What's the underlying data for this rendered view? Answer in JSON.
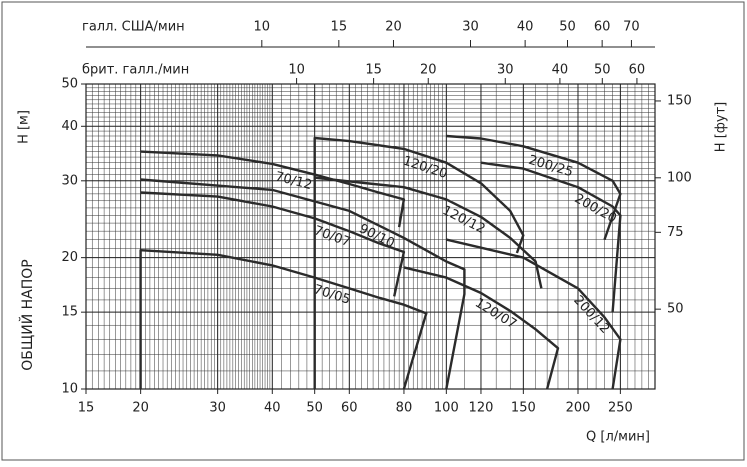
{
  "chart_data": {
    "type": "line",
    "x_label": "Q [л/мин]",
    "y_label": "H [м]",
    "y2_label": "H [фут]",
    "y_title": "ОБЩИЙ НАПОР",
    "x2_label": "галл. США/мин",
    "x3_label": "брит. галл./мин",
    "log_scale": true,
    "grid": true,
    "color": "#2b2b2b",
    "xlim": [
      15,
      300
    ],
    "xticks": [
      15,
      20,
      30,
      40,
      50,
      60,
      80,
      100,
      120,
      150,
      200,
      250
    ],
    "ylim": [
      10,
      50
    ],
    "yticks": [
      10,
      15,
      20,
      30,
      40,
      50
    ],
    "y2lim": [
      32.81,
      164.04
    ],
    "y2ticks": [
      50,
      75,
      100,
      150
    ],
    "x2lim": [
      3.963,
      79.25
    ],
    "x2ticks": [
      10,
      15,
      20,
      30,
      40,
      50,
      60,
      70
    ],
    "x3lim": [
      3.3,
      65.99
    ],
    "x3ticks": [
      10,
      15,
      20,
      30,
      40,
      50,
      60
    ],
    "series": [
      {
        "name": "70/05",
        "x": [
          20,
          20,
          30,
          40,
          50,
          60,
          70,
          80,
          90,
          80
        ],
        "values": [
          10,
          20.8,
          20.3,
          19.2,
          18,
          17,
          16.2,
          15.6,
          14.9,
          10
        ]
      },
      {
        "name": "70/07",
        "x": [
          20,
          30,
          40,
          50,
          60,
          70,
          80,
          76
        ],
        "values": [
          28.2,
          27.6,
          26.2,
          24.6,
          23,
          21.6,
          20.6,
          16.3
        ]
      },
      {
        "name": "70/12",
        "x": [
          20,
          30,
          40,
          50,
          60,
          70,
          80,
          78
        ],
        "values": [
          35,
          34.3,
          32.8,
          31,
          29.5,
          28.2,
          27.2,
          23.5
        ]
      },
      {
        "name": "90/10",
        "x": [
          20,
          40,
          60,
          80,
          100,
          110,
          110,
          100
        ],
        "values": [
          30.2,
          28.6,
          25.6,
          22.2,
          19.6,
          18.8,
          16.5,
          10
        ]
      },
      {
        "name": "120/20",
        "x": [
          50,
          50,
          60,
          80,
          100,
          120,
          140,
          150,
          145
        ],
        "values": [
          10,
          37.6,
          37,
          35.5,
          33,
          29.6,
          25.6,
          22.5,
          20.5
        ]
      },
      {
        "name": "120/12",
        "x": [
          50,
          80,
          100,
          120,
          140,
          160,
          165
        ],
        "values": [
          30.5,
          29,
          27.2,
          24.8,
          22.2,
          19.6,
          17
        ]
      },
      {
        "name": "120/07",
        "x": [
          80,
          100,
          120,
          140,
          160,
          180,
          170
        ],
        "values": [
          19,
          18,
          16.6,
          15.1,
          13.7,
          12.4,
          10
        ]
      },
      {
        "name": "200/25",
        "x": [
          100,
          120,
          150,
          200,
          240,
          250,
          230
        ],
        "values": [
          38,
          37.5,
          36,
          33,
          30,
          28,
          22
        ]
      },
      {
        "name": "200/20",
        "x": [
          120,
          150,
          200,
          240,
          250,
          240
        ],
        "values": [
          33,
          32,
          29,
          26.2,
          25,
          15
        ]
      },
      {
        "name": "200/12",
        "x": [
          100,
          150,
          200,
          230,
          250,
          240
        ],
        "values": [
          22,
          20,
          17,
          14.6,
          13,
          10
        ]
      }
    ]
  }
}
